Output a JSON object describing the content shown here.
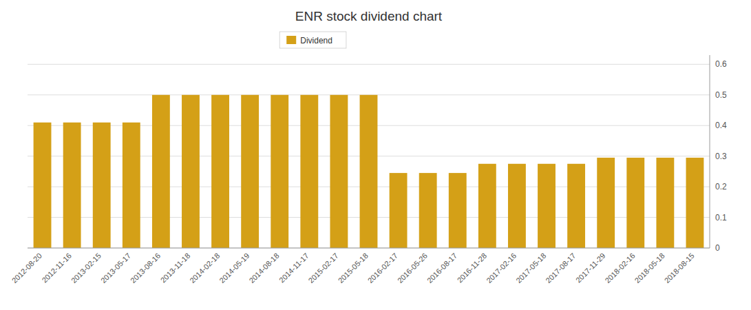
{
  "chart_data": {
    "type": "bar",
    "title": "ENR stock dividend chart",
    "categories": [
      "2012-08-20",
      "2012-11-16",
      "2013-02-15",
      "2013-05-17",
      "2013-08-16",
      "2013-11-18",
      "2014-02-18",
      "2014-05-19",
      "2014-08-18",
      "2014-11-17",
      "2015-02-17",
      "2015-05-18",
      "2016-02-17",
      "2016-05-26",
      "2016-08-17",
      "2016-11-28",
      "2017-02-16",
      "2017-05-18",
      "2017-08-17",
      "2017-11-29",
      "2018-02-16",
      "2018-05-18",
      "2018-08-15"
    ],
    "series": [
      {
        "name": "Dividend",
        "color": "#D4A017",
        "values": [
          0.41,
          0.41,
          0.41,
          0.41,
          0.5,
          0.5,
          0.5,
          0.5,
          0.5,
          0.5,
          0.5,
          0.5,
          0.245,
          0.245,
          0.245,
          0.275,
          0.275,
          0.275,
          0.275,
          0.295,
          0.295,
          0.295,
          0.295
        ]
      }
    ],
    "ylim": [
      0,
      0.63
    ],
    "yticks": [
      0,
      0.1,
      0.2,
      0.3,
      0.4,
      0.5,
      0.6
    ],
    "grid": true,
    "legend": "top"
  }
}
